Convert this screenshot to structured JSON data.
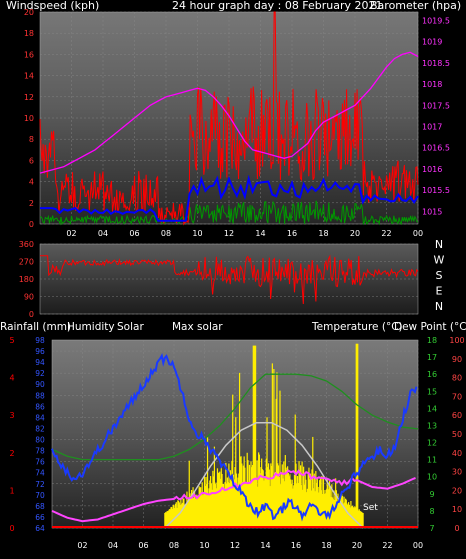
{
  "colors": {
    "wind": "#ff0000",
    "gust": "#cc0000",
    "avg": "#0000ff",
    "wind_green": "#009900",
    "baro": "#ff00ff",
    "dir": "#ff0000",
    "humidity": "#1a3aff",
    "solar": "#ffee00",
    "max_solar": "#c8c8c8",
    "temperature": "#ff44ff",
    "dew_point": "#1f8f1f",
    "rain": "#ff0000",
    "axis_text": "#ffffff",
    "left_ticks_top": "#ff3333",
    "right_ticks_top": "#ff33ff",
    "hum_ticks": "#3355ff",
    "temp_ticks": "#33cc33",
    "right2_ticks": "#ff4444"
  },
  "chart_data": [
    {
      "type": "line",
      "name_panel": "top",
      "title": "24 hour graph day : 08 February 2021",
      "left_label": "Windspeed (kph)",
      "right_label": "Barometer (hpa)",
      "x_ticks": [
        "02",
        "04",
        "06",
        "08",
        "10",
        "12",
        "14",
        "16",
        "18",
        "20",
        "22",
        "00"
      ],
      "y_left_ticks": [
        "0",
        "2",
        "4",
        "6",
        "8",
        "10",
        "12",
        "14",
        "16",
        "18",
        "20"
      ],
      "y_left_range": [
        0,
        20
      ],
      "y_right_ticks": [
        "1015",
        "1015.5",
        "1016",
        "1016.5",
        "1017",
        "1017.5",
        "1018",
        "1018.5",
        "1019",
        "1019.5"
      ],
      "y_right_range": [
        1014.7,
        1019.7
      ],
      "series": [
        {
          "key": "barometer",
          "x": [
            0,
            0.5,
            1,
            1.5,
            2,
            2.5,
            3,
            3.5,
            4,
            4.5,
            5,
            5.5,
            6,
            6.5,
            7,
            7.5,
            8,
            8.5,
            9,
            9.5,
            10,
            10.5,
            11,
            11.5,
            12,
            12.5,
            13,
            13.5,
            14,
            14.5,
            15,
            15.5,
            16,
            16.5,
            17,
            17.5,
            18,
            18.5,
            19,
            19.5,
            20,
            20.5,
            21,
            21.5,
            22,
            22.5,
            23,
            23.5,
            24
          ],
          "y": [
            1015.9,
            1015.95,
            1016.0,
            1016.05,
            1016.15,
            1016.25,
            1016.35,
            1016.45,
            1016.6,
            1016.75,
            1016.9,
            1017.05,
            1017.2,
            1017.35,
            1017.5,
            1017.6,
            1017.7,
            1017.75,
            1017.8,
            1017.85,
            1017.9,
            1017.85,
            1017.7,
            1017.5,
            1017.25,
            1016.95,
            1016.65,
            1016.45,
            1016.4,
            1016.35,
            1016.3,
            1016.25,
            1016.3,
            1016.45,
            1016.6,
            1016.9,
            1017.1,
            1017.2,
            1017.3,
            1017.4,
            1017.5,
            1017.7,
            1017.9,
            1018.15,
            1018.4,
            1018.6,
            1018.7,
            1018.75,
            1018.65
          ]
        }
      ]
    },
    {
      "type": "line",
      "name_panel": "wind-direction",
      "y_ticks": [
        "360",
        "270",
        "180",
        "90",
        "0"
      ],
      "y_range": [
        0,
        360
      ],
      "compass": [
        "N",
        "W",
        "S",
        "E",
        "N"
      ]
    },
    {
      "type": "line",
      "name_panel": "bottom",
      "labels": {
        "rainfall": "Rainfall (mm)",
        "humidity": "Humidity",
        "solar": "Solar",
        "max_solar": "Max solar",
        "temperature": "Temperature (°C)",
        "dew_point": "Dew Point (°C)"
      },
      "x_ticks": [
        "02",
        "04",
        "06",
        "08",
        "10",
        "12",
        "14",
        "16",
        "18",
        "20",
        "22",
        "00"
      ],
      "rain_ticks": [
        "0",
        "1",
        "2",
        "3",
        "4",
        "5"
      ],
      "humidity_ticks": [
        "64",
        "66",
        "68",
        "70",
        "72",
        "74",
        "76",
        "78",
        "80",
        "82",
        "84",
        "86",
        "88",
        "90",
        "92",
        "94",
        "96",
        "98"
      ],
      "humidity_range": [
        64,
        98
      ],
      "temp_ticks": [
        "7",
        "8",
        "9",
        "10",
        "11",
        "12",
        "13",
        "14",
        "15",
        "16",
        "17",
        "18"
      ],
      "temp_range": [
        7,
        18
      ],
      "right_ticks": [
        "0",
        "10",
        "20",
        "30",
        "40",
        "50",
        "60",
        "70",
        "80",
        "90",
        "100"
      ],
      "set_label": "Set",
      "series": [
        {
          "key": "humidity",
          "x": [
            0,
            0.5,
            1,
            1.5,
            2,
            2.5,
            3,
            3.5,
            4,
            4.5,
            5,
            5.5,
            6,
            6.5,
            7,
            7.5,
            8,
            8.5,
            9,
            9.5,
            10,
            10.5,
            11,
            11.5,
            12,
            12.5,
            13,
            13.5,
            14,
            14.5,
            15,
            15.5,
            16,
            16.5,
            17,
            17.5,
            18,
            18.5,
            19,
            19.5,
            20,
            20.5,
            21,
            21.5,
            22,
            22.5,
            23,
            23.5,
            24
          ],
          "y": [
            78,
            76,
            74,
            73,
            74,
            76,
            78,
            80,
            82,
            84,
            86,
            88,
            90,
            92,
            94,
            95,
            93,
            89,
            84,
            81,
            80,
            78,
            76,
            74,
            72,
            70,
            68,
            67,
            68,
            66,
            67,
            69,
            68,
            66,
            68,
            67,
            66,
            68,
            70,
            72,
            74,
            76,
            77,
            78,
            77,
            79,
            84,
            88,
            90
          ]
        },
        {
          "key": "dew_point",
          "x": [
            0,
            1,
            2,
            3,
            4,
            5,
            6,
            7,
            8,
            9,
            10,
            11,
            12,
            13,
            14,
            15,
            16,
            17,
            18,
            19,
            20,
            21,
            22,
            23,
            24
          ],
          "y": [
            11.6,
            11.2,
            11.0,
            11.0,
            11.0,
            11.0,
            11.0,
            11.0,
            11.2,
            11.6,
            12.2,
            13.0,
            14.0,
            15.2,
            16.0,
            16.0,
            16.0,
            15.9,
            15.6,
            15.0,
            14.2,
            13.6,
            13.2,
            12.9,
            12.8
          ]
        },
        {
          "key": "temperature",
          "x": [
            0,
            1,
            2,
            3,
            4,
            5,
            6,
            7,
            8,
            9,
            10,
            11,
            12,
            13,
            14,
            15,
            16,
            17,
            18,
            19,
            20,
            21,
            22,
            23,
            24
          ],
          "y": [
            8.0,
            7.6,
            7.4,
            7.5,
            7.8,
            8.1,
            8.4,
            8.6,
            8.7,
            8.8,
            9.0,
            9.3,
            9.5,
            9.8,
            10.0,
            10.1,
            10.3,
            10.0,
            9.8,
            9.7,
            9.8,
            9.4,
            9.3,
            9.6,
            10.0
          ]
        },
        {
          "key": "max_solar",
          "x": [
            7.4,
            8.4,
            9.4,
            10.4,
            11.4,
            12.4,
            13.4,
            14.4,
            15.4,
            16.4,
            17.4,
            18.4,
            19.4,
            20.4
          ],
          "y": [
            0,
            8,
            20,
            33,
            44,
            52,
            56,
            56,
            52,
            44,
            33,
            20,
            8,
            0
          ]
        },
        {
          "key": "rain",
          "x": [
            0,
            24
          ],
          "y": [
            0,
            0
          ]
        }
      ]
    }
  ]
}
